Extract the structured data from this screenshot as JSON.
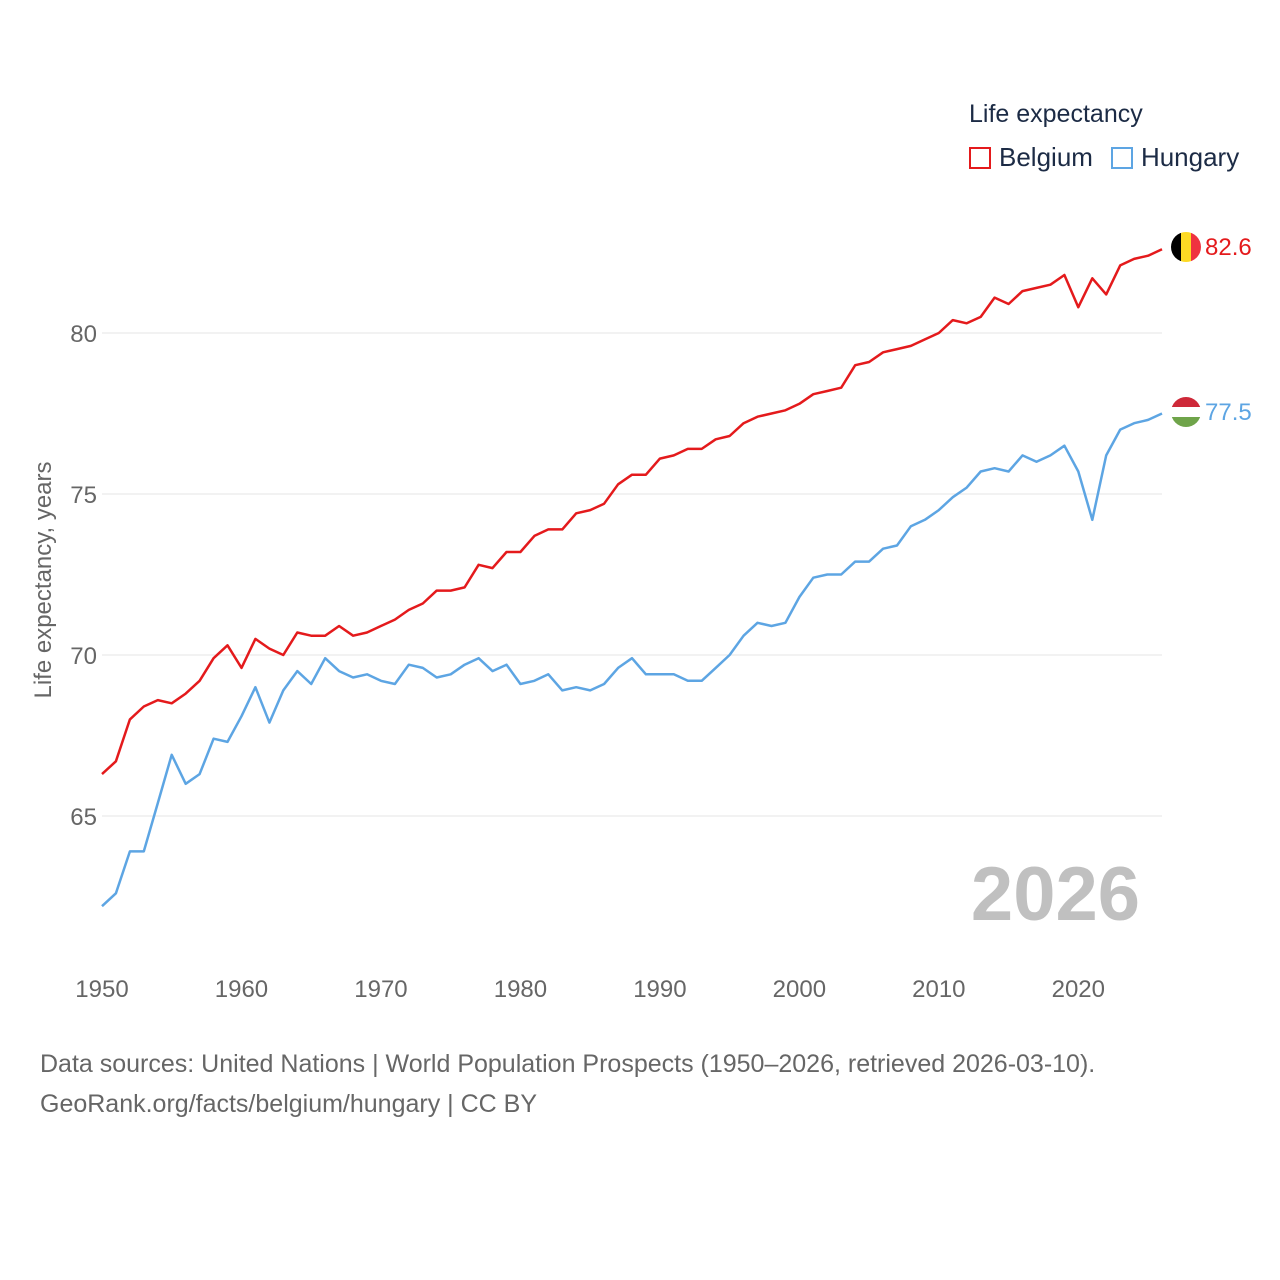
{
  "legend": {
    "title": "Life expectancy",
    "items": [
      {
        "label": "Belgium",
        "color": "#e41a1c"
      },
      {
        "label": "Hungary",
        "color": "#5da5e3"
      }
    ]
  },
  "footer": {
    "sources": "Data sources: United Nations | World Population Prospects (1950–2026, retrieved 2026-03-10).",
    "attribution": "GeoRank.org/facts/belgium/hungary | CC BY"
  },
  "chart_data": {
    "type": "line",
    "title": "Life expectancy",
    "year_label": "2026",
    "xlabel": "",
    "ylabel": "Life expectancy, years",
    "xlim": [
      1950,
      2026
    ],
    "ylim": [
      60.5,
      84.5
    ],
    "x_ticks": [
      1950,
      1960,
      1970,
      1980,
      1990,
      2000,
      2010,
      2020
    ],
    "y_ticks": [
      65,
      70,
      75,
      80
    ],
    "grid": true,
    "legend_position": "top-right",
    "end_labels": [
      {
        "series": "Belgium",
        "text": "82.6",
        "flag": "belgium-flag"
      },
      {
        "series": "Hungary",
        "text": "77.5",
        "flag": "hungary-flag"
      }
    ],
    "x": [
      1950,
      1951,
      1952,
      1953,
      1954,
      1955,
      1956,
      1957,
      1958,
      1959,
      1960,
      1961,
      1962,
      1963,
      1964,
      1965,
      1966,
      1967,
      1968,
      1969,
      1970,
      1971,
      1972,
      1973,
      1974,
      1975,
      1976,
      1977,
      1978,
      1979,
      1980,
      1981,
      1982,
      1983,
      1984,
      1985,
      1986,
      1987,
      1988,
      1989,
      1990,
      1991,
      1992,
      1993,
      1994,
      1995,
      1996,
      1997,
      1998,
      1999,
      2000,
      2001,
      2002,
      2003,
      2004,
      2005,
      2006,
      2007,
      2008,
      2009,
      2010,
      2011,
      2012,
      2013,
      2014,
      2015,
      2016,
      2017,
      2018,
      2019,
      2020,
      2021,
      2022,
      2023,
      2024,
      2025,
      2026
    ],
    "series": [
      {
        "name": "Belgium",
        "color": "#e41a1c",
        "values": [
          66.3,
          66.7,
          68.0,
          68.4,
          68.6,
          68.5,
          68.8,
          69.2,
          69.9,
          70.3,
          69.6,
          70.5,
          70.2,
          70.0,
          70.7,
          70.6,
          70.6,
          70.9,
          70.6,
          70.7,
          70.9,
          71.1,
          71.4,
          71.6,
          72.0,
          72.0,
          72.1,
          72.8,
          72.7,
          73.2,
          73.2,
          73.7,
          73.9,
          73.9,
          74.4,
          74.5,
          74.7,
          75.3,
          75.6,
          75.6,
          76.1,
          76.2,
          76.4,
          76.4,
          76.7,
          76.8,
          77.2,
          77.4,
          77.5,
          77.6,
          77.8,
          78.1,
          78.2,
          78.3,
          79.0,
          79.1,
          79.4,
          79.5,
          79.6,
          79.8,
          80.0,
          80.4,
          80.3,
          80.5,
          81.1,
          80.9,
          81.3,
          81.4,
          81.5,
          81.8,
          80.8,
          81.7,
          81.2,
          82.1,
          82.3,
          82.4,
          82.6
        ]
      },
      {
        "name": "Hungary",
        "color": "#5da5e3",
        "values": [
          62.2,
          62.6,
          63.9,
          63.9,
          65.4,
          66.9,
          66.0,
          66.3,
          67.4,
          67.3,
          68.1,
          69.0,
          67.9,
          68.9,
          69.5,
          69.1,
          69.9,
          69.5,
          69.3,
          69.4,
          69.2,
          69.1,
          69.7,
          69.6,
          69.3,
          69.4,
          69.7,
          69.9,
          69.5,
          69.7,
          69.1,
          69.2,
          69.4,
          68.9,
          69.0,
          68.9,
          69.1,
          69.6,
          69.9,
          69.4,
          69.4,
          69.4,
          69.2,
          69.2,
          69.6,
          70.0,
          70.6,
          71.0,
          70.9,
          71.0,
          71.8,
          72.4,
          72.5,
          72.5,
          72.9,
          72.9,
          73.3,
          73.4,
          74.0,
          74.2,
          74.5,
          74.9,
          75.2,
          75.7,
          75.8,
          75.7,
          76.2,
          76.0,
          76.2,
          76.5,
          75.7,
          74.2,
          76.2,
          77.0,
          77.2,
          77.3,
          77.5
        ]
      }
    ]
  }
}
